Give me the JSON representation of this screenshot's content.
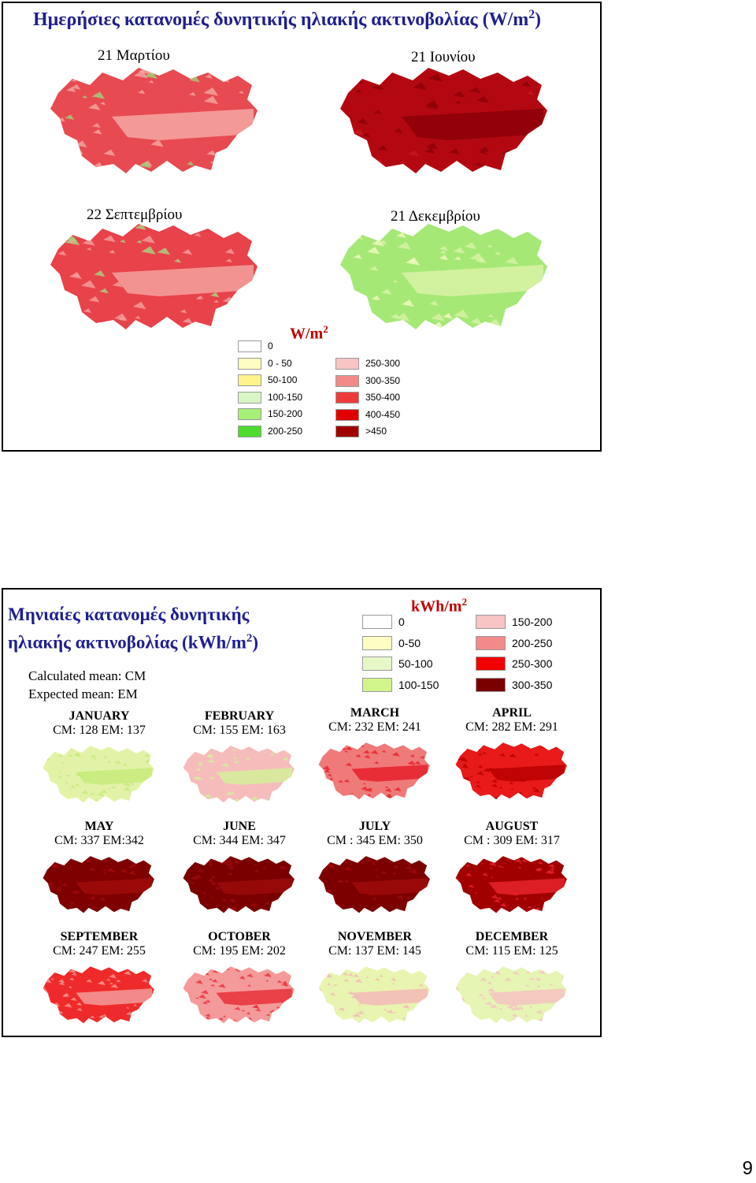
{
  "slide1": {
    "title": "Ημερήσιες κατανομές δυνητικής ηλιακής ακτινοβολίας (W/m",
    "title_sup": "2",
    "title_end": ")",
    "maps": [
      {
        "label": "21 Μαρτίου",
        "fill": "#e84a52",
        "accent": "#f4a7a3",
        "speck": "#9fd37a"
      },
      {
        "label": "21 Ιουνίου",
        "fill": "#b30812",
        "accent": "#8c0008",
        "speck": "#c41a20"
      },
      {
        "label": "22 Σεπτεμβρίου",
        "fill": "#e8424a",
        "accent": "#f3a19e",
        "speck": "#a7d682"
      },
      {
        "label": "21 Δεκεμβρίου",
        "fill": "#a6e876",
        "accent": "#d9f2a7",
        "speck": "#f6f7c4"
      }
    ],
    "legend_unit": "W/m",
    "legend_unit_sup": "2",
    "legend": [
      {
        "label": "0",
        "color": "#ffffff"
      },
      {
        "label": "0 - 50",
        "color": "#fefec0"
      },
      {
        "label": "50-100",
        "color": "#fdf58a"
      },
      {
        "label": "100-150",
        "color": "#d8f7c4"
      },
      {
        "label": "150-200",
        "color": "#a6f078"
      },
      {
        "label": "200-250",
        "color": "#4fdb2e"
      },
      {
        "label": "250-300",
        "color": "#f8c4c4"
      },
      {
        "label": "300-350",
        "color": "#f28a8a"
      },
      {
        "label": "350-400",
        "color": "#ee3a3a"
      },
      {
        "label": "400-450",
        "color": "#e00000"
      },
      {
        "label": ">450",
        "color": "#a00000"
      }
    ]
  },
  "slide2": {
    "title_line1": "Μηνιαίες κατανομές δυνητικής",
    "title_line2": "ηλιακής ακτινοβολίας (kWh/m",
    "title_sup": "2",
    "title_end": ")",
    "note1": "Calculated mean: CM",
    "note2": "Expected mean:  EM",
    "legend_unit": "kWh/m",
    "legend_unit_sup": "2",
    "legend": [
      {
        "label": "0",
        "color": "#ffffff"
      },
      {
        "label": "0-50",
        "color": "#fefec4"
      },
      {
        "label": "50-100",
        "color": "#e6f8c8"
      },
      {
        "label": "100-150",
        "color": "#d2f58a"
      },
      {
        "label": "150-200",
        "color": "#f8c4c4"
      },
      {
        "label": "200-250",
        "color": "#f28a8a"
      },
      {
        "label": "250-300",
        "color": "#f00000"
      },
      {
        "label": "300-350",
        "color": "#7a0000"
      }
    ],
    "months": [
      {
        "name": "JANUARY",
        "values": "CM: 128    EM: 137",
        "fill": "#e2f3a8",
        "accent": "#c5ea7a"
      },
      {
        "name": "FEBRUARY",
        "values": "CM: 155   EM: 163",
        "fill": "#f6bcbc",
        "accent": "#d5ef9a"
      },
      {
        "name": "MARCH",
        "values": "CM: 232      EM: 241",
        "fill": "#ef7a7a",
        "accent": "#e6202a"
      },
      {
        "name": "APRIL",
        "values": "CM: 282   EM: 291",
        "fill": "#e81a1a",
        "accent": "#b80000"
      },
      {
        "name": "MAY",
        "values": "CM: 337   EM:342",
        "fill": "#7e0000",
        "accent": "#a10a0a"
      },
      {
        "name": "JUNE",
        "values": "CM: 344  EM: 347",
        "fill": "#7a0000",
        "accent": "#9c0a0a"
      },
      {
        "name": "JULY",
        "values": "CM : 345    EM: 350",
        "fill": "#7c0000",
        "accent": "#a00a0a"
      },
      {
        "name": "AUGUST",
        "values": "CM : 309   EM: 317",
        "fill": "#a00000",
        "accent": "#e8232a"
      },
      {
        "name": "SEPTEMBER",
        "values": "CM: 247  EM:  255",
        "fill": "#ef2a2a",
        "accent": "#f49a9a"
      },
      {
        "name": "OCTOBER",
        "values": "CM: 195    EM: 202",
        "fill": "#f49a9a",
        "accent": "#e8303a"
      },
      {
        "name": "NOVEMBER",
        "values": "CM: 137     EM:  145",
        "fill": "#e8f4b0",
        "accent": "#f4b8b8"
      },
      {
        "name": "DECEMBER",
        "values": "CM: 115   EM: 125",
        "fill": "#e6f4b4",
        "accent": "#f6c2c2"
      }
    ]
  },
  "page_number": "9"
}
